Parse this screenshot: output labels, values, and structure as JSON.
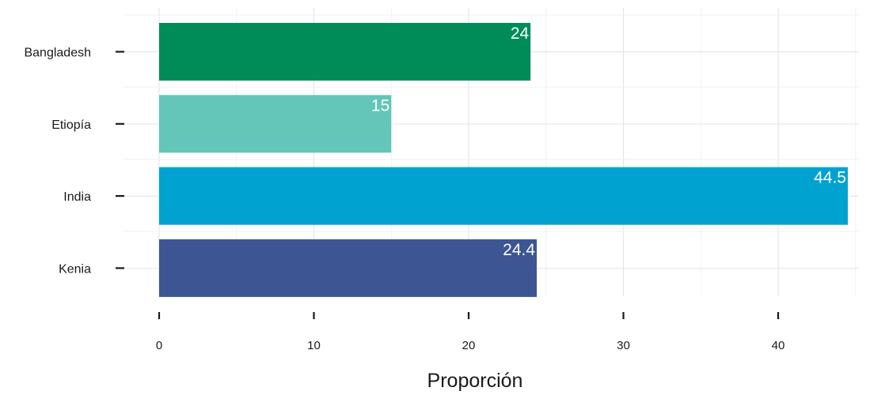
{
  "chart_data": {
    "type": "bar",
    "orientation": "horizontal",
    "categories": [
      "Bangladesh",
      "Etiopía",
      "India",
      "Kenia"
    ],
    "values": [
      24,
      15,
      44.5,
      24.4
    ],
    "value_labels": [
      "24",
      "15",
      "44.5",
      "24.4"
    ],
    "colors": [
      "#008c59",
      "#63c6b8",
      "#00a3d0",
      "#3d5593"
    ],
    "xlabel": "Proporción",
    "xlim": [
      0,
      45
    ],
    "xticks": [
      0,
      10,
      20,
      30,
      40
    ],
    "xtick_labels": [
      "0",
      "10",
      "20",
      "30",
      "40"
    ],
    "grid": true
  }
}
